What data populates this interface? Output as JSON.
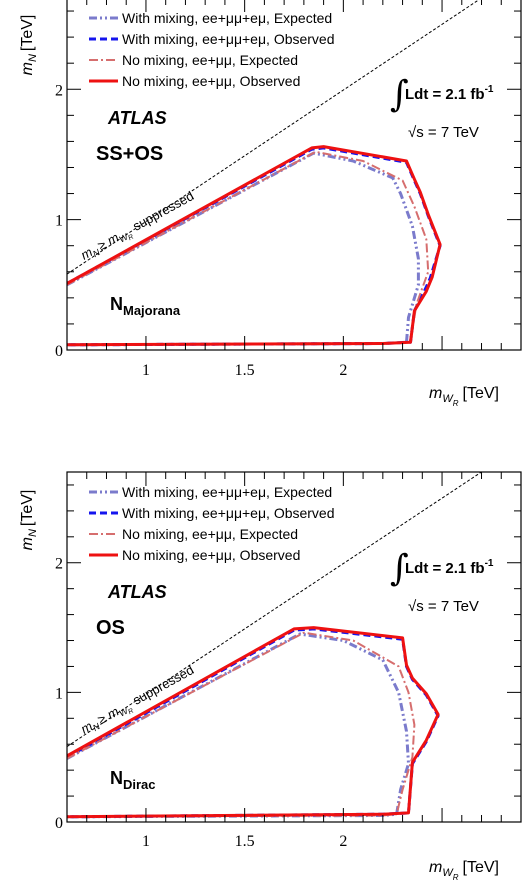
{
  "chart_data": [
    {
      "type": "line",
      "panel": "top",
      "xlabel_main": "m",
      "xlabel_sub1": "W",
      "xlabel_sub2": "R",
      "xlabel_unit": "[TeV]",
      "ylabel_main": "m",
      "ylabel_sub": "N",
      "ylabel_unit": "[TeV]",
      "xlim": [
        0.6,
        2.9
      ],
      "ylim": [
        0,
        2.7
      ],
      "xticks": [
        {
          "v": 1,
          "label": "1"
        },
        {
          "v": 1.5,
          "label": "1.5"
        },
        {
          "v": 2,
          "label": "2"
        },
        {
          "v": 2.5,
          "label": ""
        }
      ],
      "yticks": [
        {
          "v": 0,
          "label": "0"
        },
        {
          "v": 1,
          "label": "1"
        },
        {
          "v": 2,
          "label": "2"
        }
      ],
      "annotations": {
        "atlas": "ATLAS",
        "channel": "SS+OS",
        "lumi_prefix": "Ldt = 2.1 fb",
        "lumi_exp": "-1",
        "energy": "s = 7 TeV",
        "region_main": "m",
        "region_n": "N",
        "region_ge": "≥ m",
        "region_w": "W",
        "region_r": "R",
        "region_rest": "suppressed",
        "nu_main": "N",
        "nu_sub": "Majorana"
      },
      "series": [
        {
          "name": "With mixing, ee+μμ+eμ, Expected",
          "color": "#7b7bcc",
          "style": "dashdotdot",
          "width": 3,
          "x": [
            0.6,
            1.85,
            2.05,
            2.25,
            2.29,
            2.35,
            2.38,
            2.38,
            2.33,
            2.32,
            2.2,
            0.6
          ],
          "y": [
            0.5,
            1.51,
            1.45,
            1.32,
            1.2,
            0.95,
            0.7,
            0.5,
            0.25,
            0.06,
            0.05,
            0.04
          ]
        },
        {
          "name": "With mixing, ee+μμ+eμ, Observed",
          "color": "#1515ee",
          "style": "dash",
          "width": 3,
          "x": [
            0.6,
            1.84,
            1.9,
            2.32,
            2.36,
            2.39,
            2.43,
            2.49,
            2.44,
            2.41,
            2.36,
            2.34,
            2.2,
            0.6
          ],
          "y": [
            0.51,
            1.54,
            1.55,
            1.44,
            1.3,
            1.2,
            1.03,
            0.8,
            0.55,
            0.45,
            0.3,
            0.06,
            0.05,
            0.04
          ]
        },
        {
          "name": "No mixing, ee+μμ, Expected",
          "color": "#d66e6e",
          "style": "dashdot",
          "width": 2,
          "x": [
            0.6,
            1.86,
            2.1,
            2.3,
            2.36,
            2.42,
            2.43,
            2.37,
            2.34,
            2.2,
            0.6
          ],
          "y": [
            0.5,
            1.52,
            1.45,
            1.3,
            1.1,
            0.85,
            0.6,
            0.35,
            0.06,
            0.05,
            0.04
          ]
        },
        {
          "name": "No mixing, ee+μμ, Observed",
          "color": "#ee1111",
          "style": "solid",
          "width": 3,
          "x": [
            0.6,
            1.84,
            1.9,
            2.32,
            2.36,
            2.39,
            2.43,
            2.49,
            2.45,
            2.42,
            2.36,
            2.34,
            2.2,
            0.6
          ],
          "y": [
            0.51,
            1.55,
            1.56,
            1.45,
            1.31,
            1.21,
            1.04,
            0.81,
            0.56,
            0.45,
            0.3,
            0.06,
            0.05,
            0.04
          ]
        }
      ]
    },
    {
      "type": "line",
      "panel": "bottom",
      "xlabel_main": "m",
      "xlabel_sub1": "W",
      "xlabel_sub2": "R",
      "xlabel_unit": "[TeV]",
      "ylabel_main": "m",
      "ylabel_sub": "N",
      "ylabel_unit": "[TeV]",
      "xlim": [
        0.6,
        2.9
      ],
      "ylim": [
        0,
        2.7
      ],
      "xticks": [
        {
          "v": 1,
          "label": "1"
        },
        {
          "v": 1.5,
          "label": "1.5"
        },
        {
          "v": 2,
          "label": "2"
        },
        {
          "v": 2.5,
          "label": ""
        }
      ],
      "yticks": [
        {
          "v": 0,
          "label": "0"
        },
        {
          "v": 1,
          "label": "1"
        },
        {
          "v": 2,
          "label": "2"
        }
      ],
      "annotations": {
        "atlas": "ATLAS",
        "channel": "OS",
        "lumi_prefix": "Ldt = 2.1 fb",
        "lumi_exp": "-1",
        "energy": "s = 7 TeV",
        "region_main": "m",
        "region_n": "N",
        "region_ge": "≥ m",
        "region_w": "W",
        "region_r": "R",
        "region_rest": "suppressed",
        "nu_main": "N",
        "nu_sub": "Dirac"
      },
      "series": [
        {
          "name": "With mixing, ee+μμ+eμ, Expected",
          "color": "#7b7bcc",
          "style": "dashdotdot",
          "width": 3,
          "x": [
            0.6,
            1.78,
            2.0,
            2.2,
            2.28,
            2.32,
            2.33,
            2.29,
            2.27,
            2.2,
            0.6
          ],
          "y": [
            0.49,
            1.45,
            1.4,
            1.25,
            1.0,
            0.7,
            0.45,
            0.25,
            0.06,
            0.05,
            0.04
          ]
        },
        {
          "name": "With mixing, ee+μμ+eμ, Observed",
          "color": "#1515ee",
          "style": "dash",
          "width": 3,
          "x": [
            0.6,
            1.75,
            1.85,
            2.3,
            2.32,
            2.35,
            2.42,
            2.48,
            2.42,
            2.35,
            2.33,
            2.2,
            0.6
          ],
          "y": [
            0.5,
            1.48,
            1.49,
            1.41,
            1.2,
            1.1,
            0.98,
            0.82,
            0.62,
            0.45,
            0.07,
            0.06,
            0.04
          ]
        },
        {
          "name": "No mixing, ee+μμ, Expected",
          "color": "#d66e6e",
          "style": "dashdot",
          "width": 2,
          "x": [
            0.6,
            1.8,
            2.05,
            2.28,
            2.33,
            2.36,
            2.35,
            2.3,
            2.27,
            2.2,
            0.6
          ],
          "y": [
            0.49,
            1.46,
            1.4,
            1.2,
            1.0,
            0.75,
            0.5,
            0.25,
            0.06,
            0.05,
            0.04
          ]
        },
        {
          "name": "No mixing, ee+μμ, Observed",
          "color": "#ee1111",
          "style": "solid",
          "width": 3,
          "x": [
            0.6,
            1.75,
            1.85,
            2.3,
            2.32,
            2.35,
            2.42,
            2.48,
            2.42,
            2.35,
            2.33,
            2.2,
            0.6
          ],
          "y": [
            0.51,
            1.49,
            1.5,
            1.42,
            1.21,
            1.11,
            0.99,
            0.83,
            0.63,
            0.46,
            0.07,
            0.06,
            0.04
          ]
        }
      ]
    }
  ]
}
